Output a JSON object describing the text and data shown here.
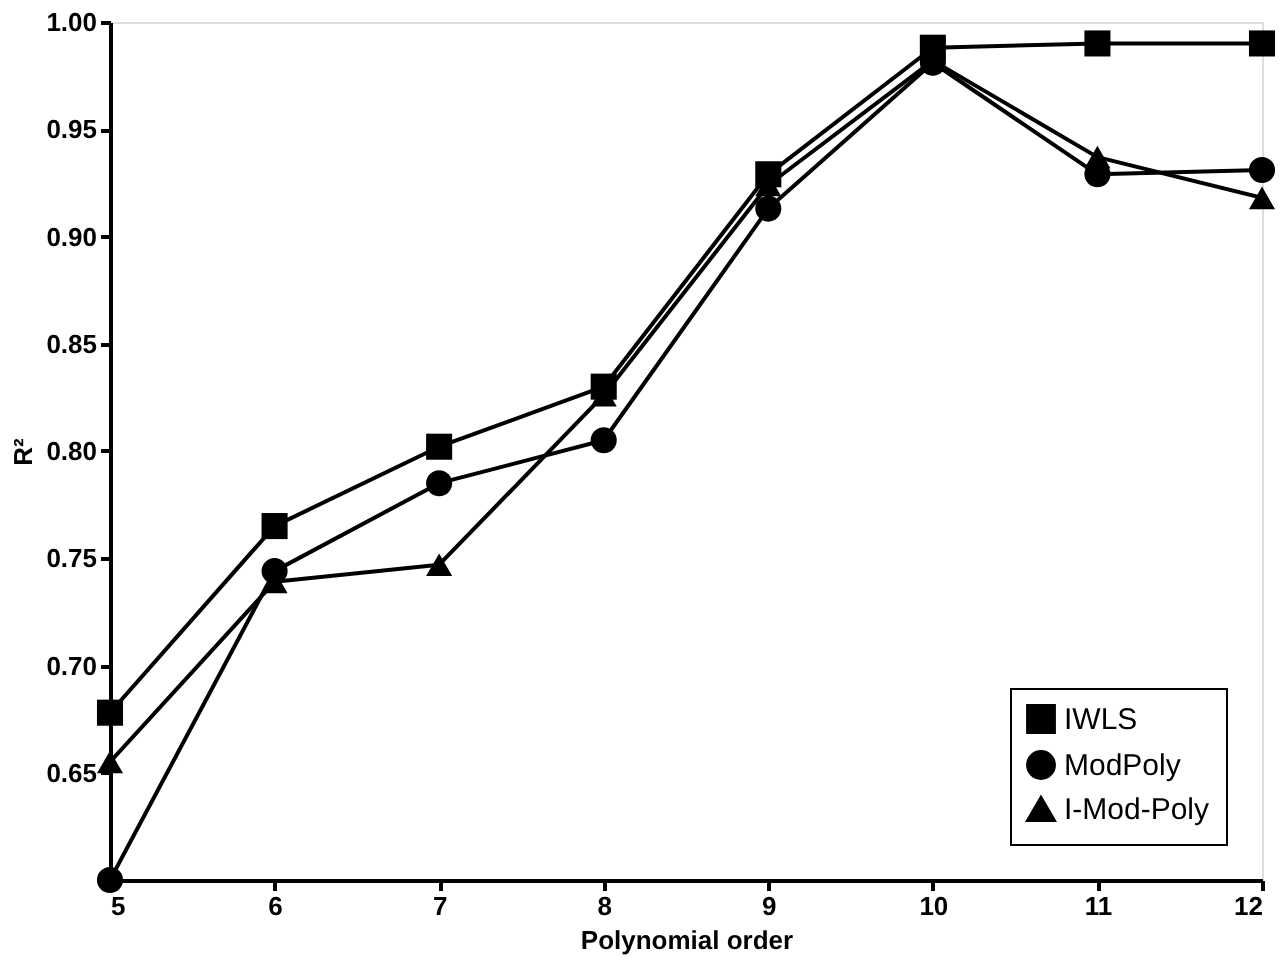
{
  "chart_data": {
    "type": "line",
    "xlabel": "Polynomial order",
    "ylabel": "R²",
    "x": [
      5,
      6,
      7,
      8,
      9,
      10,
      11,
      12
    ],
    "series": [
      {
        "name": "IWLS",
        "color": "#000000",
        "marker": "square",
        "values": [
          0.678,
          0.765,
          0.802,
          0.83,
          0.929,
          0.988,
          0.99,
          0.99
        ]
      },
      {
        "name": "ModPoly",
        "color": "#000000",
        "marker": "circle",
        "values": [
          0.6,
          0.744,
          0.785,
          0.805,
          0.913,
          0.981,
          0.929,
          0.931
        ]
      },
      {
        "name": "I-Mod-Poly",
        "color": "#000000",
        "marker": "triangle",
        "values": [
          0.655,
          0.739,
          0.747,
          0.826,
          0.924,
          0.982,
          0.937,
          0.918
        ]
      }
    ],
    "xlim": [
      5,
      12
    ],
    "xticks": [
      5,
      6,
      7,
      8,
      9,
      10,
      11,
      12
    ],
    "ylim": [
      0.6,
      1.0
    ],
    "yticks": [
      {
        "value": 0.6,
        "label": null
      },
      {
        "value": 0.65,
        "label": "0.65"
      },
      {
        "value": 0.7,
        "label": "0.70"
      },
      {
        "value": 0.75,
        "label": "0.75"
      },
      {
        "value": 0.8,
        "label": "0.80"
      },
      {
        "value": 0.85,
        "label": "0.85"
      },
      {
        "value": 0.9,
        "label": "0.90"
      },
      {
        "value": 0.95,
        "label": "0.95"
      },
      {
        "value": 1.0,
        "label": "1.00"
      }
    ],
    "grid": false,
    "legend": "bottom right",
    "line_style": "solid"
  }
}
